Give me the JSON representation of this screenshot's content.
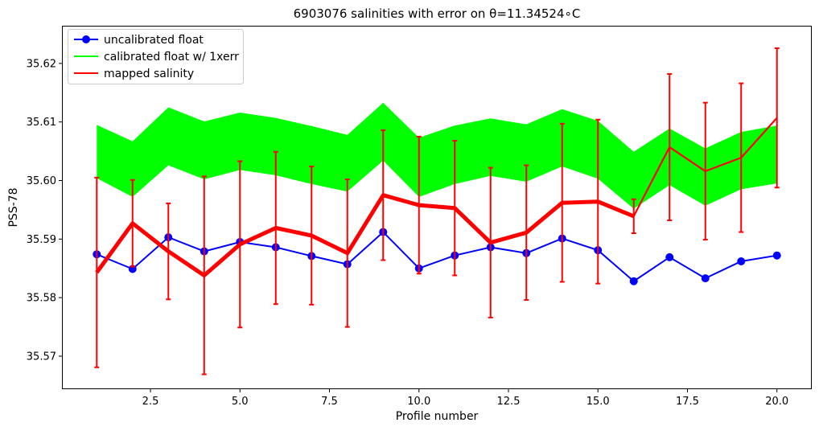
{
  "chart_data": {
    "type": "line",
    "title": "6903076 salinities with error on θ=11.34524∘C",
    "xlabel": "Profile number",
    "ylabel": "PSS-78",
    "xlim": [
      0.05,
      20.95
    ],
    "ylim": [
      35.5645,
      35.6263
    ],
    "xticks": [
      2.5,
      5.0,
      7.5,
      10.0,
      12.5,
      15.0,
      17.5,
      20.0
    ],
    "xtick_labels": [
      "2.5",
      "5.0",
      "7.5",
      "10.0",
      "12.5",
      "15.0",
      "17.5",
      "20.0"
    ],
    "yticks": [
      35.57,
      35.58,
      35.59,
      35.6,
      35.61,
      35.62
    ],
    "ytick_labels": [
      "35.57",
      "35.58",
      "35.59",
      "35.60",
      "35.61",
      "35.62"
    ],
    "grid": false,
    "legend_position": "top-left",
    "x": [
      1,
      2,
      3,
      4,
      5,
      6,
      7,
      8,
      9,
      10,
      11,
      12,
      13,
      14,
      15,
      16,
      17,
      18,
      19,
      20
    ],
    "series": [
      {
        "name": "uncalibrated float",
        "kind": "line-markers",
        "color": "#0000ff",
        "values": [
          35.5874,
          35.5849,
          35.5903,
          35.5879,
          35.5895,
          35.5886,
          35.5871,
          35.5857,
          35.5912,
          35.585,
          35.5872,
          35.5886,
          35.5876,
          35.5901,
          35.5881,
          35.5828,
          35.5869,
          35.5833,
          35.5862,
          35.5872
        ]
      },
      {
        "name": "calibrated float w/ 1xerr",
        "kind": "band",
        "color": "#00ff00",
        "lower": [
          35.6004,
          35.5972,
          35.6026,
          35.6002,
          35.6018,
          35.6009,
          35.5994,
          35.5981,
          35.6034,
          35.5972,
          35.5994,
          35.6008,
          35.5998,
          35.6024,
          35.6003,
          35.5952,
          35.5992,
          35.5957,
          35.5985,
          35.5995
        ],
        "upper": [
          35.6095,
          35.6067,
          35.6125,
          35.6101,
          35.6116,
          35.6107,
          35.6093,
          35.6078,
          35.6133,
          35.6073,
          35.6094,
          35.6106,
          35.6096,
          35.6122,
          35.6102,
          35.6049,
          35.6089,
          35.6055,
          35.6083,
          35.6094
        ]
      },
      {
        "name": "mapped salinity",
        "kind": "line-errorbars",
        "color": "#ff0000",
        "values": [
          35.5843,
          35.5927,
          35.5879,
          35.5838,
          35.5891,
          35.5919,
          35.5906,
          35.5876,
          35.5975,
          35.5958,
          35.5953,
          35.5894,
          35.5911,
          35.5962,
          35.5964,
          35.5939,
          35.6057,
          35.6016,
          35.6039,
          35.6107
        ],
        "errors": [
          0.0162,
          0.0074,
          0.0082,
          0.0169,
          0.0142,
          0.013,
          0.0118,
          0.0126,
          0.0111,
          0.0117,
          0.0115,
          0.0128,
          0.0115,
          0.0135,
          0.014,
          0.0029,
          0.0125,
          0.0117,
          0.0127,
          0.0119
        ],
        "thick_until_x": 16
      }
    ]
  }
}
